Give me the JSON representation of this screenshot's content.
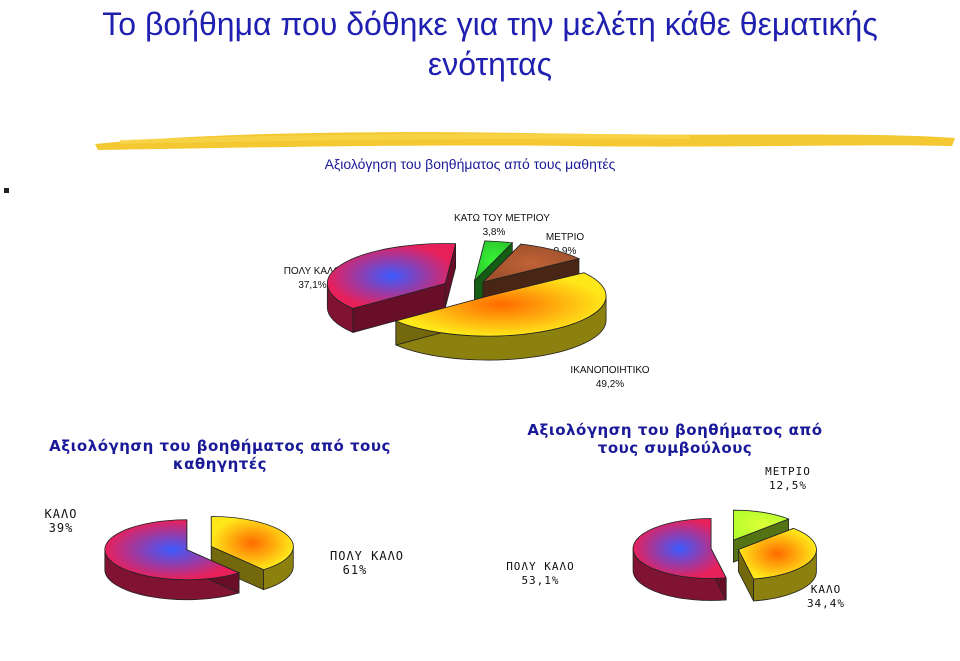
{
  "page": {
    "title": "Το βοήθημα που δόθηκε για την μελέτη κάθε θεματικής ενότητας"
  },
  "colors": {
    "title": "#1f1fb0",
    "subtitle": "#1a1a99",
    "brush": "#f2c21a"
  },
  "chart_data": [
    {
      "type": "pie",
      "title": "Αξιολόγηση του βοηθήματος από τους μαθητές",
      "slices": [
        {
          "label": "ΚΑΤΩ ΤΟΥ ΜΕΤΡΙΟΥ",
          "value": 3.8,
          "value_text": "3,8%",
          "color": "#2ecc2e"
        },
        {
          "label": "ΜΕΤΡΙΟ",
          "value": 9.9,
          "value_text": "9,9%",
          "color": "#a0522d"
        },
        {
          "label": "ΙΚΑΝΟΠΟΙΗΤΙΚΟ",
          "value": 49.2,
          "value_text": "49,2%",
          "color": "#ffe81a"
        },
        {
          "label": "ΠΟΛΥ ΚΑΛΟ",
          "value": 37.1,
          "value_text": "37,1%",
          "color": "#e8205a"
        }
      ]
    },
    {
      "type": "pie",
      "title": "Αξιολόγηση του βοηθήματος από τους καθηγητές",
      "slices": [
        {
          "label": "ΚΑΛΟ",
          "value": 39,
          "value_text": "39%",
          "color": "#ffe81a"
        },
        {
          "label": "ΠΟΛΥ ΚΑΛΟ",
          "value": 61,
          "value_text": "61%",
          "color": "#e8205a"
        }
      ]
    },
    {
      "type": "pie",
      "title": "Αξιολόγηση του βοηθήματος από τους συμβούλους",
      "slices": [
        {
          "label": "ΜΕΤΡΙΟ",
          "value": 12.5,
          "value_text": "12,5%",
          "color": "#b8ff2e"
        },
        {
          "label": "ΚΑΛΟ",
          "value": 34.4,
          "value_text": "34,4%",
          "color": "#ffe81a"
        },
        {
          "label": "ΠΟΛΥ ΚΑΛΟ",
          "value": 53.1,
          "value_text": "53,1%",
          "color": "#e8205a"
        }
      ]
    }
  ]
}
